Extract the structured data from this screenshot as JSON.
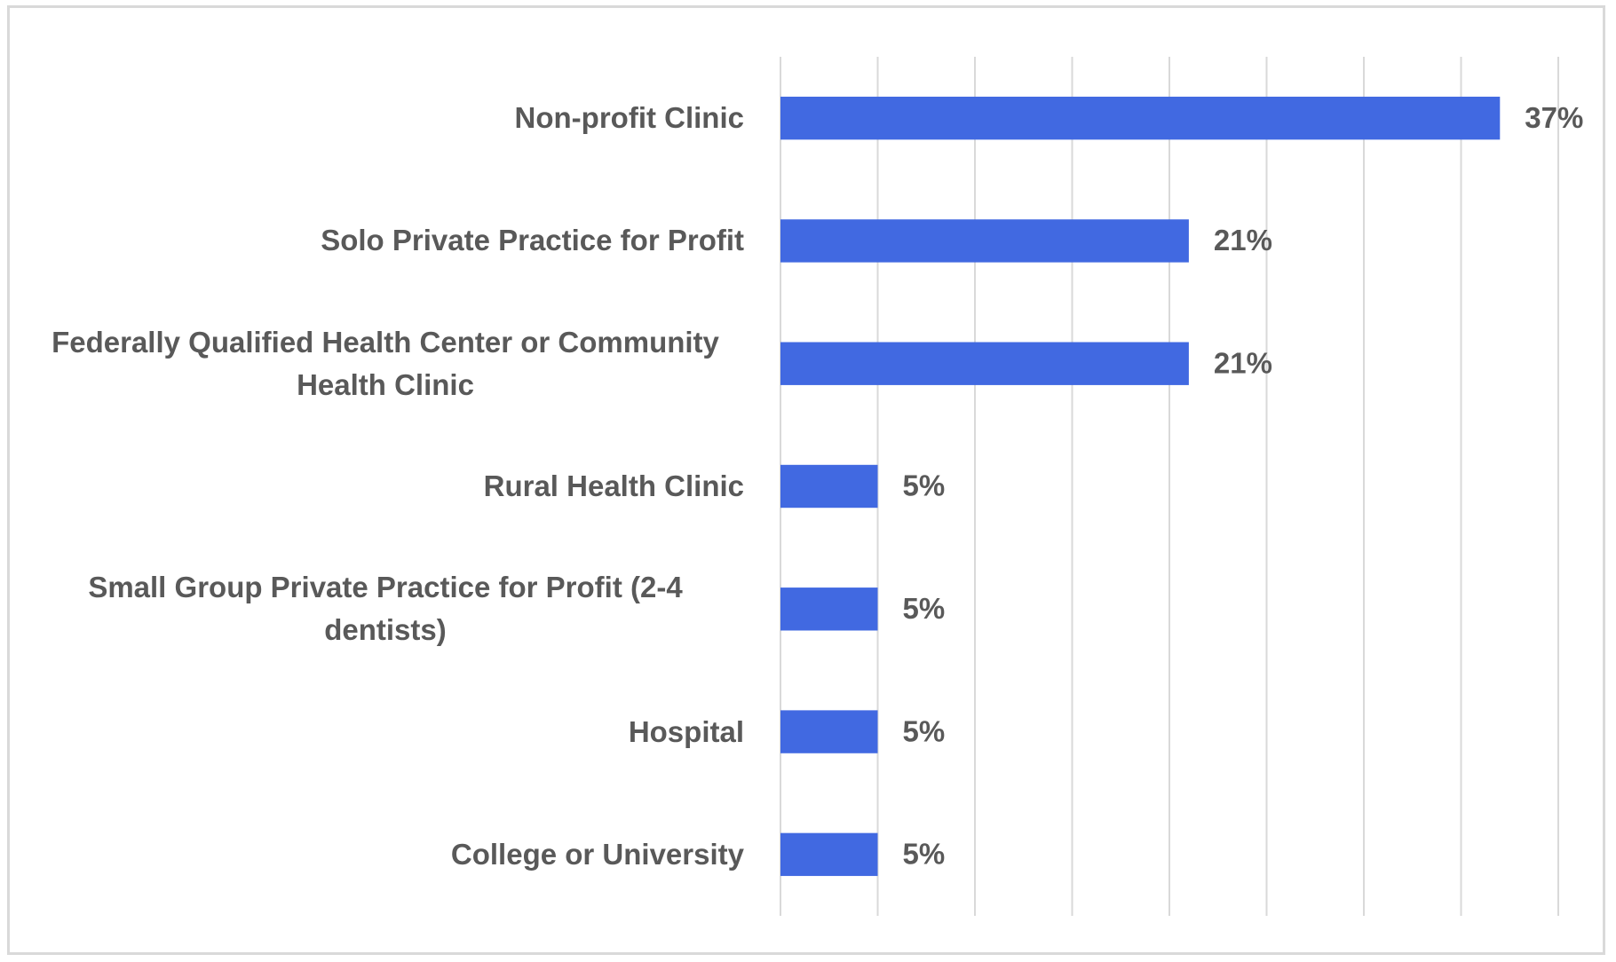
{
  "chart_data": {
    "type": "bar",
    "orientation": "horizontal",
    "categories": [
      "Non-profit Clinic",
      "Solo Private Practice for Profit",
      "Federally Qualified Health Center or Community Health Clinic",
      "Rural Health Clinic",
      "Small Group Private Practice for Profit (2-4 dentists)",
      "Hospital",
      "College or University"
    ],
    "values": [
      37,
      21,
      21,
      5,
      5,
      5,
      5
    ],
    "value_labels": [
      "37%",
      "21%",
      "21%",
      "5%",
      "5%",
      "5%",
      "5%"
    ],
    "color": "#4169e1",
    "xlim": [
      0,
      40
    ],
    "xticks": [
      0,
      5,
      10,
      15,
      20,
      25,
      30,
      35,
      40
    ],
    "grid": true
  }
}
